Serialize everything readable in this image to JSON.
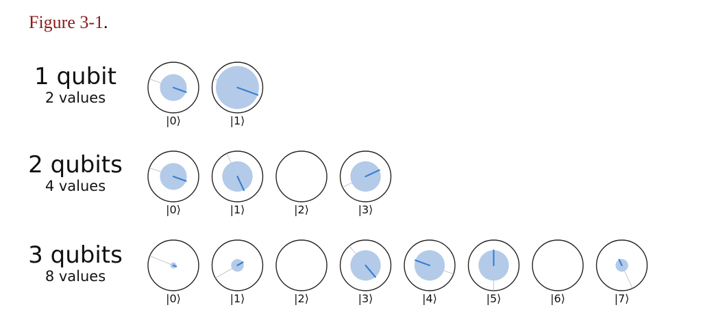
{
  "caption": {
    "text": "Figure 3-1",
    "punct": "."
  },
  "colors": {
    "fill": "#b3cbe9",
    "phase": "#3a7fcf",
    "ring": "#222222",
    "guide": "#b8b8b8",
    "caption_ref": "#8b1a1a"
  },
  "rows": [
    {
      "title": "1 qubit",
      "subtitle": "2 values",
      "states": [
        {
          "label": "|0⟩",
          "magnitude": 0.53,
          "phase_deg": 110
        },
        {
          "label": "|1⟩",
          "magnitude": 0.85,
          "phase_deg": 110
        }
      ]
    },
    {
      "title": "2 qubits",
      "subtitle": "4 values",
      "states": [
        {
          "label": "|0⟩",
          "magnitude": 0.53,
          "phase_deg": 110
        },
        {
          "label": "|1⟩",
          "magnitude": 0.6,
          "phase_deg": 155
        },
        {
          "label": "|2⟩",
          "magnitude": 0,
          "phase_deg": 0
        },
        {
          "label": "|3⟩",
          "magnitude": 0.6,
          "phase_deg": 65
        }
      ]
    },
    {
      "title": "3 qubits",
      "subtitle": "8 values",
      "states": [
        {
          "label": "|0⟩",
          "magnitude": 0.12,
          "phase_deg": 112
        },
        {
          "label": "|1⟩",
          "magnitude": 0.25,
          "phase_deg": 60
        },
        {
          "label": "|2⟩",
          "magnitude": 0,
          "phase_deg": 0
        },
        {
          "label": "|3⟩",
          "magnitude": 0.6,
          "phase_deg": 140
        },
        {
          "label": "|4⟩",
          "magnitude": 0.6,
          "phase_deg": -70
        },
        {
          "label": "|5⟩",
          "magnitude": 0.6,
          "phase_deg": 0
        },
        {
          "label": "|6⟩",
          "magnitude": 0,
          "phase_deg": 0
        },
        {
          "label": "|7⟩",
          "magnitude": 0.25,
          "phase_deg": -25
        }
      ]
    }
  ]
}
